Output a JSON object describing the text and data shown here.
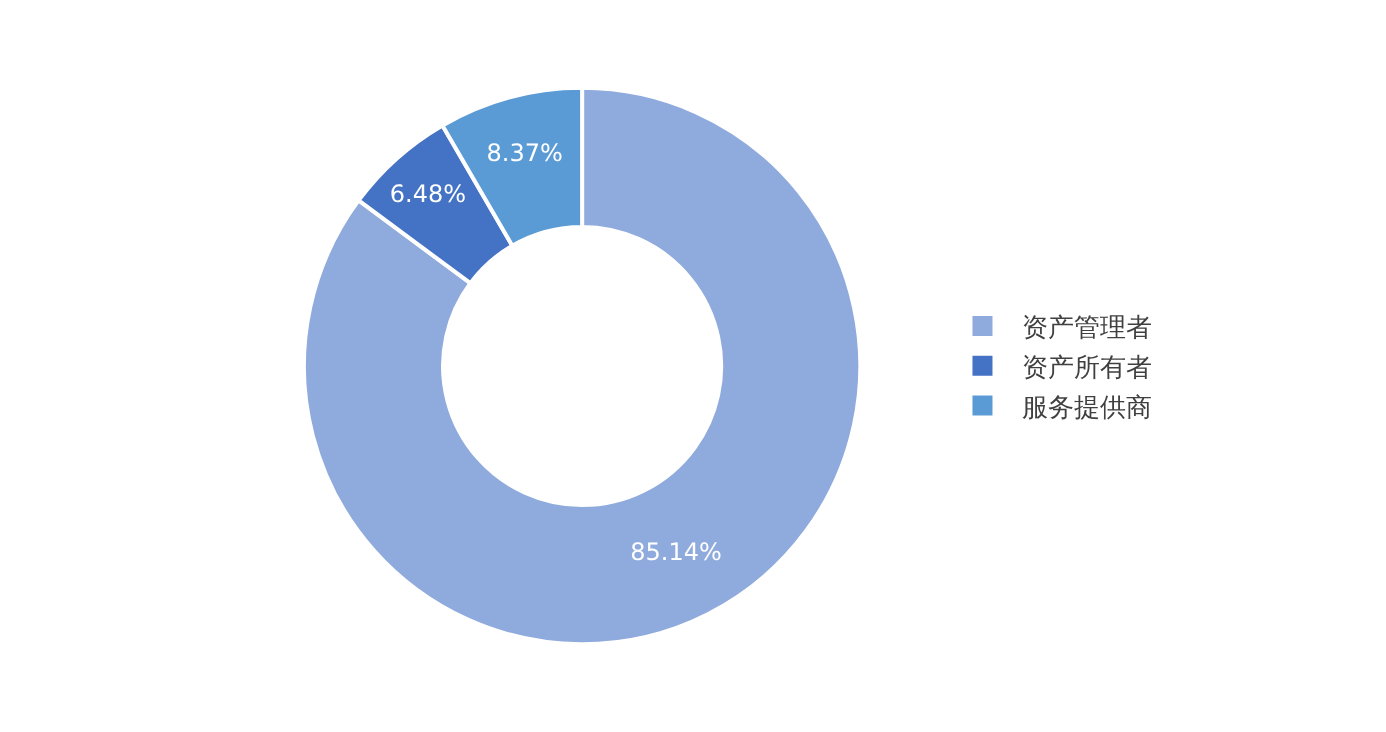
{
  "chart_data": {
    "type": "donut",
    "categories": [
      "资产管理者",
      "资产所有者",
      "服务提供商"
    ],
    "values": [
      85.14,
      6.48,
      8.37
    ],
    "colors": [
      "#8faadc",
      "#4472c4",
      "#5b9bd5"
    ],
    "value_labels": [
      "85.14%",
      "6.48%",
      "8.37%"
    ],
    "legend": "right"
  }
}
